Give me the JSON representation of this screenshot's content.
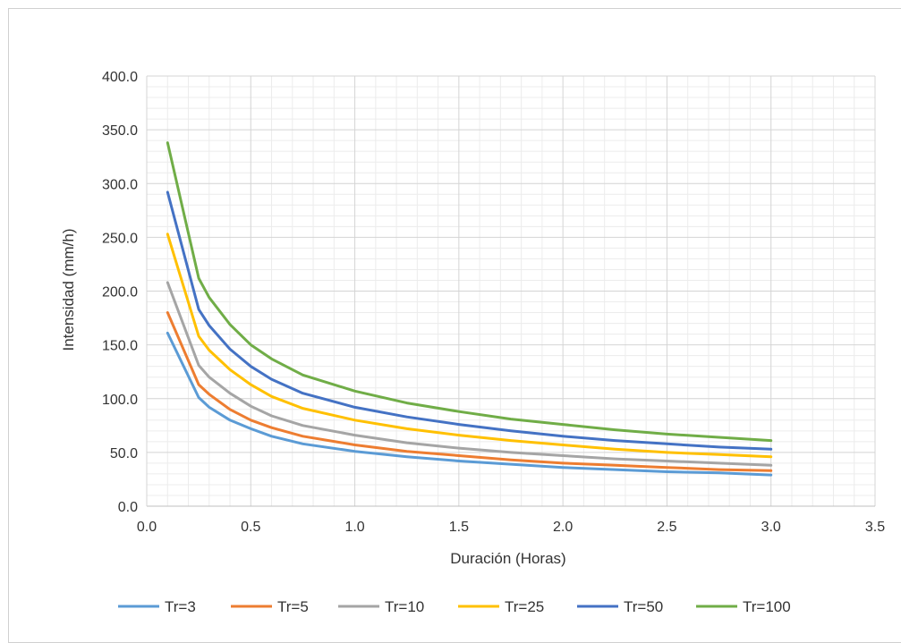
{
  "chart_data": {
    "type": "line",
    "title": "",
    "xlabel": "Duración (Horas)",
    "ylabel": "Intensidad (mm/h)",
    "xlim": [
      0,
      3.5
    ],
    "ylim": [
      0,
      400
    ],
    "x_ticks": [
      "0.0",
      "0.5",
      "1.0",
      "1.5",
      "2.0",
      "2.5",
      "3.0",
      "3.5"
    ],
    "y_ticks": [
      "0.0",
      "50.0",
      "100.0",
      "150.0",
      "200.0",
      "250.0",
      "300.0",
      "350.0",
      "400.0"
    ],
    "grid": true,
    "minor_grid": true,
    "legend_position": "bottom",
    "x": [
      0.1,
      0.25,
      0.3,
      0.4,
      0.5,
      0.6,
      0.75,
      1.0,
      1.25,
      1.5,
      1.75,
      2.0,
      2.25,
      2.5,
      2.75,
      3.0
    ],
    "series": [
      {
        "name": "Tr=3",
        "color": "#5b9bd5",
        "values": [
          161,
          101,
          92,
          80,
          72,
          65,
          58,
          51,
          46,
          42,
          39,
          36,
          34,
          32,
          31,
          29
        ]
      },
      {
        "name": "Tr=5",
        "color": "#ed7d31",
        "values": [
          180,
          113,
          104,
          90,
          80,
          73,
          65,
          57,
          51,
          47,
          43,
          40,
          38,
          36,
          34,
          33
        ]
      },
      {
        "name": "Tr=10",
        "color": "#a5a5a5",
        "values": [
          208,
          131,
          120,
          105,
          93,
          84,
          75,
          66,
          59,
          54,
          50,
          47,
          44,
          42,
          40,
          38
        ]
      },
      {
        "name": "Tr=25",
        "color": "#ffc000",
        "values": [
          253,
          158,
          145,
          127,
          113,
          102,
          91,
          80,
          72,
          66,
          61,
          57,
          53,
          50,
          48,
          46
        ]
      },
      {
        "name": "Tr=50",
        "color": "#4472c4",
        "values": [
          292,
          183,
          168,
          146,
          130,
          118,
          105,
          92,
          83,
          76,
          70,
          65,
          61,
          58,
          55,
          53
        ]
      },
      {
        "name": "Tr=100",
        "color": "#70ad47",
        "values": [
          338,
          212,
          194,
          169,
          150,
          137,
          122,
          107,
          96,
          88,
          81,
          76,
          71,
          67,
          64,
          61
        ]
      }
    ]
  }
}
